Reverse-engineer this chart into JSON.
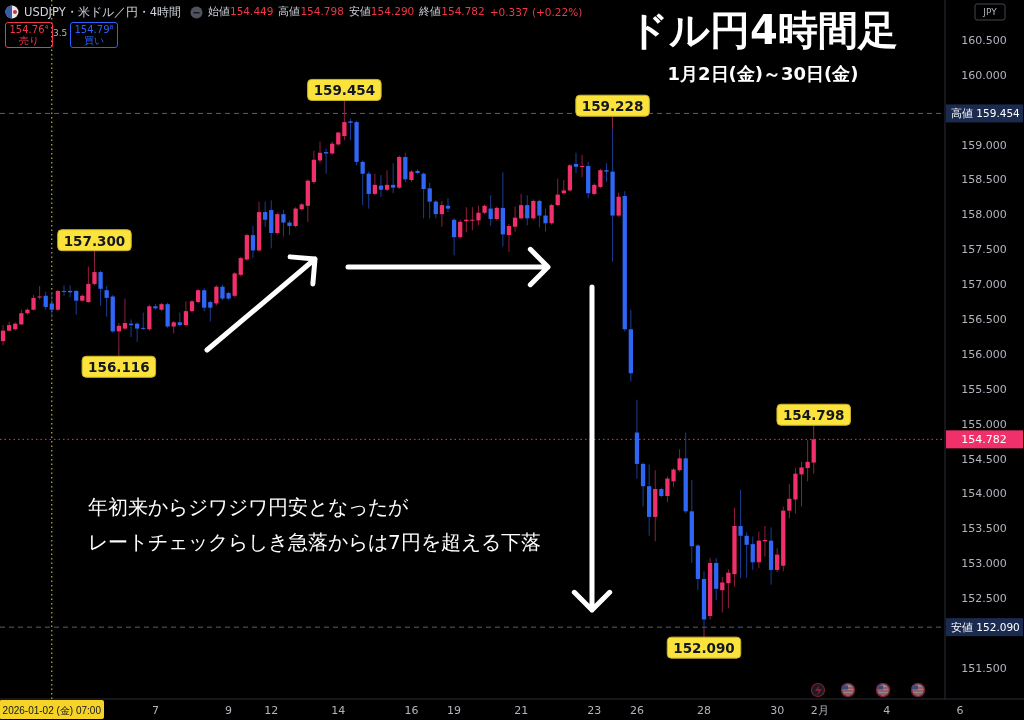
{
  "chart_data": {
    "type": "candlestick",
    "title": "ドル円4時間足",
    "subtitle": "1月2日(金)～30日(金)",
    "ylabel": "JPY",
    "categories": [
      null,
      null,
      null,
      null,
      null,
      null,
      null,
      null,
      "2026-01-02 (金) 07:00",
      null,
      null,
      null,
      null,
      null,
      null,
      null,
      null,
      null,
      null,
      null,
      null,
      null,
      null,
      null,
      null,
      "7",
      null,
      null,
      null,
      null,
      null,
      null,
      null,
      null,
      null,
      null,
      null,
      "9",
      null,
      null,
      null,
      null,
      null,
      null,
      "12",
      null,
      null,
      null,
      null,
      null,
      null,
      null,
      null,
      null,
      null,
      "14",
      null,
      null,
      null,
      null,
      null,
      null,
      null,
      null,
      null,
      null,
      null,
      "16",
      null,
      null,
      null,
      null,
      null,
      null,
      "19",
      null,
      null,
      null,
      null,
      null,
      null,
      null,
      null,
      null,
      null,
      "21",
      null,
      null,
      null,
      null,
      null,
      null,
      null,
      null,
      null,
      null,
      null,
      "23",
      null,
      null,
      null,
      null,
      null,
      null,
      "26",
      null,
      null,
      null,
      null,
      null,
      null,
      null,
      null,
      null,
      null,
      "28",
      null,
      null,
      null,
      null,
      null,
      null,
      null,
      null,
      null,
      null,
      null,
      "30",
      null,
      null,
      null,
      null,
      null,
      null,
      "2月",
      null,
      null,
      null,
      null,
      null,
      null,
      null,
      null,
      null,
      null,
      "4",
      null,
      null,
      null,
      null,
      null,
      null,
      null,
      null,
      null,
      null,
      null,
      "6",
      null,
      null,
      null,
      null,
      null,
      null,
      null,
      null,
      null,
      null
    ],
    "ohlc": [
      [
        156.19,
        156.42,
        156.13,
        156.34
      ],
      [
        156.34,
        156.47,
        156.33,
        156.42
      ],
      [
        156.36,
        156.46,
        156.34,
        156.44
      ],
      [
        156.43,
        156.64,
        156.42,
        156.59
      ],
      [
        156.59,
        156.66,
        156.57,
        156.64
      ],
      [
        156.64,
        156.85,
        156.63,
        156.81
      ],
      [
        156.82,
        156.98,
        156.79,
        156.83
      ],
      [
        156.84,
        156.9,
        156.64,
        156.68
      ],
      [
        156.73,
        156.88,
        156.52,
        156.64
      ],
      [
        156.64,
        156.92,
        156.62,
        156.91
      ],
      [
        156.91,
        156.99,
        156.84,
        156.9
      ],
      [
        156.91,
        156.99,
        156.82,
        156.89
      ],
      [
        156.91,
        156.92,
        156.57,
        156.77
      ],
      [
        156.77,
        156.86,
        156.76,
        156.84
      ],
      [
        156.75,
        157.26,
        156.74,
        157.01
      ],
      [
        157.01,
        157.3,
        156.99,
        157.18
      ],
      [
        157.18,
        157.2,
        156.7,
        156.94
      ],
      [
        156.92,
        156.98,
        156.54,
        156.81
      ],
      [
        156.83,
        156.85,
        156.31,
        156.33
      ],
      [
        156.33,
        156.45,
        156.116,
        156.41
      ],
      [
        156.37,
        156.8,
        156.35,
        156.45
      ],
      [
        156.44,
        156.5,
        156.25,
        156.42
      ],
      [
        156.44,
        156.46,
        156.18,
        156.37
      ],
      [
        156.38,
        156.6,
        156.35,
        156.37
      ],
      [
        156.36,
        156.71,
        156.34,
        156.69
      ],
      [
        156.69,
        156.72,
        156.64,
        156.66
      ],
      [
        156.64,
        156.74,
        156.62,
        156.72
      ],
      [
        156.72,
        156.74,
        156.38,
        156.4
      ],
      [
        156.4,
        156.48,
        156.3,
        156.46
      ],
      [
        156.46,
        156.6,
        156.4,
        156.42
      ],
      [
        156.42,
        156.76,
        156.4,
        156.62
      ],
      [
        156.62,
        156.78,
        156.6,
        156.76
      ],
      [
        156.75,
        156.94,
        156.73,
        156.92
      ],
      [
        156.92,
        156.95,
        156.62,
        156.67
      ],
      [
        156.75,
        156.77,
        156.47,
        156.67
      ],
      [
        156.73,
        156.99,
        156.7,
        156.97
      ],
      [
        156.97,
        157.0,
        156.78,
        156.8
      ],
      [
        156.88,
        156.9,
        156.78,
        156.8
      ],
      [
        156.84,
        157.18,
        156.82,
        157.16
      ],
      [
        157.14,
        157.4,
        157.12,
        157.38
      ],
      [
        157.36,
        157.73,
        157.34,
        157.71
      ],
      [
        157.71,
        157.84,
        157.38,
        157.49
      ],
      [
        157.49,
        158.19,
        157.47,
        158.04
      ],
      [
        158.04,
        158.19,
        157.83,
        157.93
      ],
      [
        158.07,
        158.21,
        157.52,
        157.74
      ],
      [
        157.74,
        158.03,
        157.72,
        158.01
      ],
      [
        158.01,
        158.07,
        157.69,
        157.89
      ],
      [
        157.89,
        157.92,
        157.71,
        157.84
      ],
      [
        157.84,
        158.11,
        157.82,
        158.09
      ],
      [
        158.08,
        158.17,
        158.06,
        158.15
      ],
      [
        158.13,
        158.51,
        157.9,
        158.49
      ],
      [
        158.47,
        158.92,
        158.44,
        158.79
      ],
      [
        158.78,
        159.05,
        158.74,
        158.89
      ],
      [
        158.9,
        158.95,
        158.59,
        158.88
      ],
      [
        158.88,
        159.05,
        158.86,
        159.02
      ],
      [
        159.01,
        159.19,
        158.99,
        159.18
      ],
      [
        159.13,
        159.454,
        159.07,
        159.33
      ],
      [
        159.34,
        159.38,
        159.07,
        159.32
      ],
      [
        159.33,
        159.35,
        158.71,
        158.76
      ],
      [
        158.76,
        158.78,
        158.14,
        158.59
      ],
      [
        158.59,
        158.62,
        158.09,
        158.3
      ],
      [
        158.3,
        158.59,
        158.28,
        158.43
      ],
      [
        158.42,
        158.57,
        158.26,
        158.36
      ],
      [
        158.36,
        158.64,
        158.34,
        158.43
      ],
      [
        158.43,
        158.74,
        158.31,
        158.39
      ],
      [
        158.39,
        158.85,
        158.37,
        158.83
      ],
      [
        158.83,
        158.89,
        158.47,
        158.51
      ],
      [
        158.5,
        158.64,
        158.47,
        158.62
      ],
      [
        158.63,
        158.65,
        158.58,
        158.6
      ],
      [
        158.59,
        158.61,
        157.95,
        158.37
      ],
      [
        158.38,
        158.46,
        157.95,
        158.19
      ],
      [
        158.19,
        158.21,
        157.95,
        158.01
      ],
      [
        158.01,
        158.2,
        157.83,
        158.14
      ],
      [
        158.13,
        158.24,
        158.04,
        158.09
      ],
      [
        157.93,
        157.95,
        157.42,
        157.68
      ],
      [
        157.68,
        157.93,
        157.66,
        157.9
      ],
      [
        157.91,
        158.11,
        157.75,
        157.93
      ],
      [
        157.92,
        158.11,
        157.78,
        157.93
      ],
      [
        157.92,
        158.13,
        157.85,
        158.03
      ],
      [
        158.03,
        158.15,
        158.01,
        158.13
      ],
      [
        158.09,
        158.28,
        157.84,
        157.94
      ],
      [
        157.94,
        158.12,
        157.92,
        158.1
      ],
      [
        158.1,
        158.61,
        157.55,
        157.72
      ],
      [
        157.71,
        157.87,
        157.47,
        157.84
      ],
      [
        157.83,
        158.12,
        157.76,
        157.96
      ],
      [
        157.95,
        158.3,
        157.93,
        158.14
      ],
      [
        158.14,
        158.28,
        157.85,
        157.95
      ],
      [
        157.95,
        158.22,
        157.93,
        158.2
      ],
      [
        158.2,
        158.22,
        157.82,
        157.99
      ],
      [
        157.99,
        158.09,
        157.76,
        157.88
      ],
      [
        157.88,
        158.16,
        157.86,
        158.14
      ],
      [
        158.14,
        158.52,
        158.12,
        158.29
      ],
      [
        158.31,
        158.5,
        158.29,
        158.35
      ],
      [
        158.35,
        158.73,
        158.33,
        158.71
      ],
      [
        158.73,
        158.89,
        158.6,
        158.69
      ],
      [
        158.69,
        158.86,
        158.54,
        158.7
      ],
      [
        158.7,
        158.76,
        158.24,
        158.31
      ],
      [
        158.3,
        158.45,
        158.28,
        158.43
      ],
      [
        158.4,
        158.66,
        158.38,
        158.64
      ],
      [
        158.64,
        158.74,
        158.47,
        158.62
      ],
      [
        158.62,
        159.228,
        157.33,
        157.99
      ],
      [
        157.99,
        158.32,
        157.97,
        158.26
      ],
      [
        158.27,
        158.34,
        156.33,
        156.36
      ],
      [
        156.36,
        156.64,
        155.61,
        155.73
      ],
      [
        154.88,
        155.35,
        154.22,
        154.43
      ],
      [
        154.43,
        154.45,
        153.82,
        154.11
      ],
      [
        154.11,
        154.42,
        153.4,
        153.67
      ],
      [
        153.67,
        154.34,
        153.32,
        154.07
      ],
      [
        154.07,
        154.09,
        153.95,
        153.97
      ],
      [
        153.97,
        154.25,
        153.88,
        154.22
      ],
      [
        154.18,
        154.37,
        154.1,
        154.35
      ],
      [
        154.34,
        154.64,
        154.32,
        154.51
      ],
      [
        154.51,
        154.88,
        153.72,
        153.75
      ],
      [
        153.75,
        154.2,
        153.01,
        153.25
      ],
      [
        153.26,
        153.28,
        152.62,
        152.78
      ],
      [
        152.78,
        152.89,
        152.09,
        152.2
      ],
      [
        152.25,
        153.08,
        152.2,
        153.01
      ],
      [
        153.01,
        153.08,
        152.48,
        152.64
      ],
      [
        152.62,
        152.81,
        152.3,
        152.73
      ],
      [
        152.72,
        152.92,
        152.36,
        152.87
      ],
      [
        152.85,
        153.8,
        152.67,
        153.54
      ],
      [
        153.54,
        154.06,
        152.79,
        153.4
      ],
      [
        153.4,
        153.45,
        152.8,
        153.27
      ],
      [
        153.28,
        153.39,
        152.91,
        153.02
      ],
      [
        153.02,
        153.46,
        152.94,
        153.33
      ],
      [
        153.32,
        153.54,
        153.1,
        153.34
      ],
      [
        153.33,
        153.52,
        152.7,
        152.91
      ],
      [
        152.91,
        153.22,
        152.88,
        153.13
      ],
      [
        152.97,
        153.82,
        152.89,
        153.76
      ],
      [
        153.76,
        154.14,
        153.65,
        153.93
      ],
      [
        153.92,
        154.37,
        153.72,
        154.29
      ],
      [
        154.28,
        154.46,
        153.82,
        154.38
      ],
      [
        154.37,
        154.77,
        154.18,
        154.46
      ],
      [
        154.449,
        154.798,
        154.29,
        154.782
      ],
      null,
      null,
      null,
      null,
      null,
      null,
      null,
      null,
      null,
      null,
      null,
      null,
      null,
      null,
      null,
      null,
      null,
      null,
      null,
      null,
      null,
      null,
      null,
      null,
      null,
      null,
      null,
      null,
      null,
      null,
      null,
      null,
      null,
      null
    ],
    "colors": [
      "#f0306b",
      "#f0306b",
      "#f0306b",
      "#f0306b",
      "#f0306b",
      "#f0306b",
      "#f0306b",
      "#2f66f5",
      "#2f66f5",
      "#f0306b",
      "#2f66f5",
      "#2f66f5",
      "#2f66f5",
      "#f0306b",
      "#f0306b",
      "#f0306b",
      "#2f66f5",
      "#2f66f5",
      "#2f66f5",
      "#f0306b",
      "#f0306b",
      "#2f66f5",
      "#2f66f5",
      "#2f66f5",
      "#f0306b",
      "#2f66f5",
      "#f0306b",
      "#2f66f5",
      "#f0306b",
      "#2f66f5",
      "#f0306b",
      "#f0306b",
      "#f0306b",
      "#2f66f5",
      "#2f66f5",
      "#f0306b",
      "#2f66f5",
      "#2f66f5",
      "#f0306b",
      "#f0306b",
      "#f0306b",
      "#2f66f5",
      "#f0306b",
      "#2f66f5",
      "#2f66f5",
      "#f0306b",
      "#2f66f5",
      "#2f66f5",
      "#f0306b",
      "#f0306b",
      "#f0306b",
      "#f0306b",
      "#f0306b",
      "#2f66f5",
      "#f0306b",
      "#f0306b",
      "#f0306b",
      "#2f66f5",
      "#2f66f5",
      "#2f66f5",
      "#2f66f5",
      "#f0306b",
      "#2f66f5",
      "#f0306b",
      "#2f66f5",
      "#f0306b",
      "#2f66f5",
      "#f0306b",
      "#2f66f5",
      "#2f66f5",
      "#2f66f5",
      "#2f66f5",
      "#f0306b",
      "#2f66f5",
      "#2f66f5",
      "#f0306b",
      "#f0306b",
      "#f0306b",
      "#f0306b",
      "#f0306b",
      "#2f66f5",
      "#f0306b",
      "#2f66f5",
      "#f0306b",
      "#f0306b",
      "#f0306b",
      "#2f66f5",
      "#f0306b",
      "#2f66f5",
      "#2f66f5",
      "#f0306b",
      "#f0306b",
      "#f0306b",
      "#f0306b",
      "#2f66f5",
      "#f0306b",
      "#2f66f5",
      "#f0306b",
      "#f0306b",
      "#2f66f5",
      "#2f66f5",
      "#f0306b",
      "#2f66f5",
      "#2f66f5",
      "#2f66f5",
      "#2f66f5",
      "#2f66f5",
      "#f0306b",
      "#2f66f5",
      "#f0306b",
      "#f0306b",
      "#f0306b",
      "#2f66f5",
      "#2f66f5",
      "#2f66f5",
      "#2f66f5",
      "#f0306b",
      "#2f66f5",
      "#f0306b",
      "#f0306b",
      "#f0306b",
      "#2f66f5",
      "#2f66f5",
      "#2f66f5",
      "#f0306b",
      "#f0306b",
      "#2f66f5",
      "#f0306b",
      "#f0306b",
      "#f0306b",
      "#f0306b",
      "#f0306b",
      "#f0306b",
      "#f0306b",
      null,
      null,
      null,
      null,
      null,
      null,
      null,
      null,
      null,
      null,
      null,
      null,
      null,
      null,
      null,
      null,
      null,
      null,
      null,
      null,
      null,
      null,
      null,
      null,
      null,
      null,
      null,
      null,
      null,
      null,
      null,
      null,
      null,
      null
    ],
    "ylim": [
      151.06,
      161.08
    ],
    "yticks": [
      {
        "value": 151.5,
        "label": "151.500"
      },
      {
        "value": 152.5,
        "label": "152.500"
      },
      {
        "value": 153,
        "label": "153.000"
      },
      {
        "value": 153.5,
        "label": "153.500"
      },
      {
        "value": 154,
        "label": "154.000"
      },
      {
        "value": 154.5,
        "label": "154.500"
      },
      {
        "value": 154.782,
        "label": "154.782"
      },
      {
        "value": 155,
        "label": "155.000"
      },
      {
        "value": 155.5,
        "label": "155.500"
      },
      {
        "value": 156,
        "label": "156.000"
      },
      {
        "value": 156.5,
        "label": "156.500"
      },
      {
        "value": 157,
        "label": "157.000"
      },
      {
        "value": 157.5,
        "label": "157.500"
      },
      {
        "value": 158,
        "label": "158.000"
      },
      {
        "value": 158.5,
        "label": "158.500"
      },
      {
        "value": 159,
        "label": "159.000"
      },
      {
        "value": 160,
        "label": "160.000"
      },
      {
        "value": 160.5,
        "label": "160.500"
      }
    ],
    "ref_lines": [
      {
        "axis": "y",
        "value": 159.454,
        "label": "高値 159.454",
        "color": "#5d606b",
        "line_style": "dashed"
      },
      {
        "axis": "y",
        "value": 152.09,
        "label": "安値 152.090",
        "color": "#5d606b",
        "line_style": "dashed"
      },
      {
        "axis": "y",
        "value": 154.782,
        "color": "#f0306b",
        "line_style": "dotted"
      },
      {
        "axis": "x",
        "value": "2026-01-02 (金) 07:00",
        "color": "#f5d327",
        "line_style": "dotted"
      }
    ],
    "annotations": [
      "USDJPY・米ドル／円・4時間",
      "始値154.449",
      "高値154.798",
      "安値154.290",
      "終値154.782",
      "+0.337 (+0.22%)",
      "154.76⁴",
      "売り",
      "3.5",
      "154.79⁸",
      "買い",
      "年初来からジワジワ円安となったが",
      "レートチェックらしき急落からは7円を超える下落",
      {
        "text": "159.454",
        "y": 159.454
      },
      {
        "text": "159.228",
        "y": 159.228
      },
      {
        "text": "157.300",
        "y": 157.3
      },
      {
        "text": "156.116",
        "y": 156.116
      },
      {
        "text": "154.798",
        "y": 154.798
      },
      {
        "text": "152.090",
        "y": 152.09
      }
    ]
  }
}
